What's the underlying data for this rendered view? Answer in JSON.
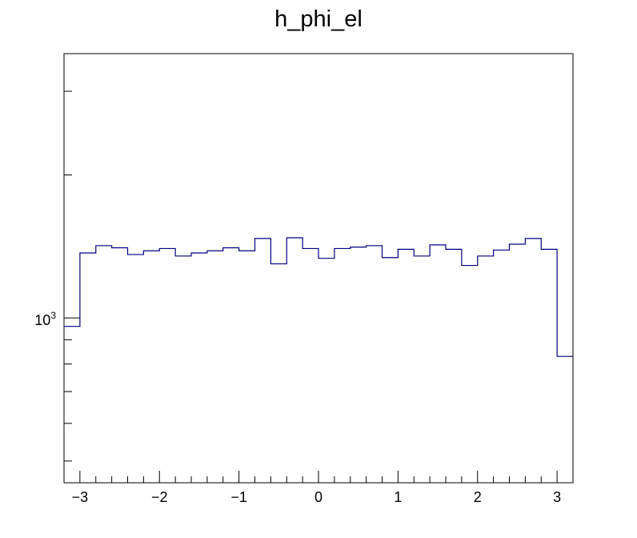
{
  "chart_data": {
    "type": "histogram",
    "title": "h_phi_el",
    "xlabel": "",
    "ylabel": "",
    "y_scale": "log",
    "xlim": [
      -3.2,
      3.2
    ],
    "ylim": [
      450,
      3600
    ],
    "bin_edges": [
      -3.2,
      -3.0,
      -2.8,
      -2.6,
      -2.4,
      -2.2,
      -2.0,
      -1.8,
      -1.6,
      -1.4,
      -1.2,
      -1.0,
      -0.8,
      -0.6,
      -0.4,
      -0.2,
      0.0,
      0.2,
      0.4,
      0.6,
      0.8,
      1.0,
      1.2,
      1.4,
      1.6,
      1.8,
      2.0,
      2.2,
      2.4,
      2.6,
      2.8,
      3.0,
      3.2
    ],
    "values": [
      960,
      1370,
      1420,
      1405,
      1360,
      1385,
      1400,
      1350,
      1370,
      1385,
      1405,
      1385,
      1470,
      1300,
      1475,
      1400,
      1335,
      1400,
      1410,
      1420,
      1340,
      1395,
      1350,
      1425,
      1395,
      1290,
      1350,
      1390,
      1430,
      1470,
      1395,
      830
    ],
    "x_ticks": [
      {
        "value": -3,
        "label": "−3"
      },
      {
        "value": -2,
        "label": "−2"
      },
      {
        "value": -1,
        "label": "−1"
      },
      {
        "value": 0,
        "label": "0"
      },
      {
        "value": 1,
        "label": "1"
      },
      {
        "value": 2,
        "label": "2"
      },
      {
        "value": 3,
        "label": "3"
      }
    ],
    "y_major_ticks": [
      {
        "value": 1000,
        "base": "10",
        "exponent": "3"
      }
    ],
    "y_minor_ticks": [
      500,
      600,
      700,
      800,
      900,
      2000,
      3000
    ],
    "line_color": "#000080",
    "frame_color": "#000000"
  }
}
